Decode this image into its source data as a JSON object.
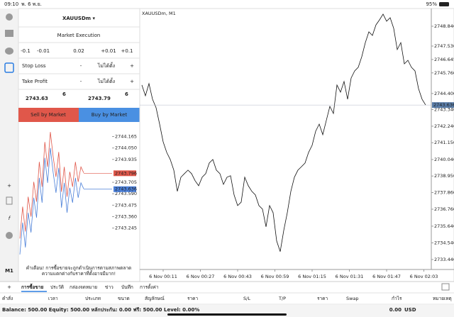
{
  "status_bar": {
    "time": "09:10",
    "date": "พ. 6 พ.ย.",
    "battery": "95%"
  },
  "left_toolbar": {
    "timeframe": "M1"
  },
  "order_panel": {
    "symbol": "XAUUSDm ▾",
    "execution": "Market Execution",
    "volume_steps": [
      "-0.1",
      "-0.01",
      "0.02",
      "+0.01",
      "+0.1"
    ],
    "stop_loss": {
      "label": "Stop Loss",
      "minus": "-",
      "value": "ไม่ได้ตั้ง",
      "plus": "+"
    },
    "take_profit": {
      "label": "Take Profit",
      "minus": "-",
      "value": "ไม่ได้ตั้ง",
      "plus": "+"
    },
    "bid": {
      "main": "2743.63",
      "sup": "6"
    },
    "ask": {
      "main": "2743.79",
      "sup": "6"
    },
    "sell_button": "Sell by Market",
    "buy_button": "Buy by Market",
    "warning": [
      "คำเตือน! การซื้อขายจะถูกดำเนินการตามสภาพตลาด",
      "ความแตกต่างกับราคาที่ตั้งอาจมีมาก!"
    ]
  },
  "tick_chart": {
    "type": "line",
    "ylim": [
      2742.9,
      2744.29
    ],
    "yticks": [
      2744.165,
      {
        "value": 2744.05,
        "label": "2744.050"
      },
      2743.935,
      2743.705,
      {
        "value": 2743.59,
        "label": "2743.590"
      },
      2743.475,
      {
        "value": 2743.36,
        "label": "2743.360"
      },
      2743.245
    ],
    "series": [
      {
        "color": "#e0574a",
        "values": [
          2743.14,
          2743.46,
          2743.21,
          2743.56,
          2743.36,
          2743.71,
          2743.51,
          2743.91,
          2743.66,
          2744.11,
          2743.86,
          2744.21,
          2743.96,
          2743.76,
          2744.01,
          2743.61,
          2743.86,
          2743.56,
          2743.81,
          2743.66,
          2743.91,
          2743.71,
          2743.86,
          2743.8
        ]
      },
      {
        "color": "#4a7fd8",
        "values": [
          2742.98,
          2743.3,
          2743.05,
          2743.4,
          2743.2,
          2743.55,
          2743.35,
          2743.75,
          2743.5,
          2743.95,
          2743.7,
          2744.05,
          2743.8,
          2743.6,
          2743.85,
          2743.45,
          2743.7,
          2743.4,
          2743.65,
          2743.5,
          2743.75,
          2743.55,
          2743.7,
          2743.64
        ]
      }
    ],
    "ask_tag": {
      "value": 2743.796,
      "label": "2743.796"
    },
    "bid_tag": 2743.636
  },
  "main_chart": {
    "type": "line",
    "title": "XAUUSDm, M1",
    "color": "#111",
    "ylim": [
      2732.78,
      2750.01
    ],
    "yticks": [
      {
        "value": 2748.84,
        "label": "2748.840"
      },
      {
        "value": 2747.53,
        "label": "2747.530"
      },
      2746.645,
      {
        "value": 2745.76,
        "label": "2745.760"
      },
      {
        "value": 2744.4,
        "label": "2744.400"
      },
      {
        "value": 2743.34,
        "label": "2743.340"
      },
      {
        "value": 2742.24,
        "label": "2742.240"
      },
      {
        "value": 2741.15,
        "label": "2741.150"
      },
      {
        "value": 2740.04,
        "label": "2740.040"
      },
      {
        "value": 2738.95,
        "label": "2738.950"
      },
      {
        "value": 2737.86,
        "label": "2737.860"
      },
      {
        "value": 2736.76,
        "label": "2736.760"
      },
      {
        "value": 2735.64,
        "label": "2735.640"
      },
      {
        "value": 2734.54,
        "label": "2734.540"
      },
      {
        "value": 2733.44,
        "label": "2733.440"
      }
    ],
    "categories": [
      "6 Nov 00:11",
      "6 Nov 00:27",
      "6 Nov 00:43",
      "6 Nov 00:59",
      "6 Nov 01:15",
      "6 Nov 01:31",
      "6 Nov 01:47",
      "6 Nov 02:03"
    ],
    "values": [
      2744.96,
      2744.25,
      2745.05,
      2744.02,
      2743.46,
      2742.38,
      2741.21,
      2740.51,
      2740.04,
      2739.34,
      2737.94,
      2738.87,
      2739.11,
      2739.34,
      2739.11,
      2738.64,
      2738.31,
      2738.87,
      2739.11,
      2739.81,
      2740.04,
      2739.34,
      2739.11,
      2738.4,
      2738.87,
      2738.97,
      2737.7,
      2737.0,
      2737.23,
      2738.87,
      2738.31,
      2737.94,
      2737.7,
      2737.0,
      2736.77,
      2735.6,
      2737.0,
      2736.53,
      2734.66,
      2733.96,
      2735.36,
      2736.53,
      2737.94,
      2738.87,
      2739.34,
      2739.57,
      2739.81,
      2740.51,
      2740.98,
      2741.91,
      2742.38,
      2741.68,
      2742.62,
      2743.55,
      2743.08,
      2744.96,
      2744.49,
      2745.19,
      2744.02,
      2745.42,
      2745.89,
      2746.13,
      2746.83,
      2747.76,
      2748.47,
      2748.23,
      2748.93,
      2749.26,
      2749.64,
      2749.17,
      2749.4,
      2748.7,
      2747.3,
      2747.76,
      2746.36,
      2746.59,
      2746.13,
      2745.89,
      2744.72,
      2744.02,
      2743.64
    ],
    "price_tag": {
      "value": 2743.636,
      "label": "2743.636"
    }
  },
  "tabs": [
    "การซื้อขาย",
    "ประวัติ",
    "กล่องจดหมาย",
    "ข่าว",
    "บันทึก",
    "การตั้งค่า"
  ],
  "columns": [
    "คำสั่ง",
    "เวลา",
    "ประเภท",
    "ขนาด",
    "สัญลักษณ์",
    "ราคา",
    "S/L",
    "T/P",
    "ราคา",
    "Swap",
    "กำไร",
    "หมายเหตุ"
  ],
  "balance": {
    "text": "Balance: 500.00 Equity: 500.00 หลักประกัน: 0.00 ฟรี: 500.00 Level: 0.00%",
    "profit": "0.00",
    "currency": "USD"
  }
}
